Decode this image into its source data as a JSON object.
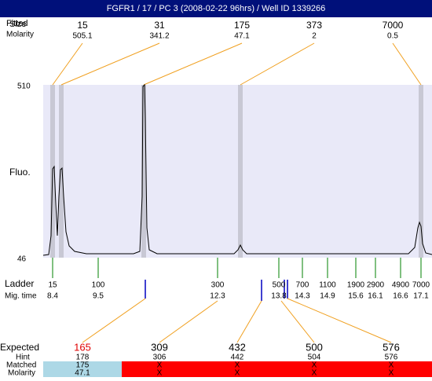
{
  "header": {
    "title": "FGFR1 / 17 / PC 3 (2008-02-22 96hrs) / Well ID 1339266"
  },
  "peaks": {
    "row_labels": [
      "Fitted",
      "Size",
      "Molarity"
    ],
    "sizes": [
      "15",
      "31",
      "175",
      "373",
      "7000"
    ],
    "molarity": [
      "505.1",
      "341.2",
      "47.1",
      "2",
      "0.5"
    ]
  },
  "plot": {
    "y_max_label": "510",
    "y_min_label": "46",
    "y_axis_label": "Fluo."
  },
  "ladder": {
    "row_labels": [
      "Ladder",
      "Mig. time"
    ],
    "sizes": [
      "15",
      "100",
      "300",
      "500",
      "700",
      "1100",
      "1900",
      "2900",
      "4900",
      "7000"
    ],
    "mig_times": [
      "8.4",
      "9.5",
      "12.3",
      "13.8",
      "14.3",
      "14.9",
      "15.6",
      "16.1",
      "16.6",
      "17.1"
    ]
  },
  "expected": {
    "row_labels": [
      "Expected",
      "Hint",
      "Matched",
      "Molarity"
    ],
    "expected": [
      "165",
      "309",
      "432",
      "500",
      "576"
    ],
    "hint": [
      "178",
      "306",
      "442",
      "504",
      "576"
    ],
    "matched": [
      "175",
      "X",
      "X",
      "X",
      "X"
    ],
    "molarity": [
      "47.1",
      "X",
      "X",
      "X",
      "X"
    ]
  }
}
